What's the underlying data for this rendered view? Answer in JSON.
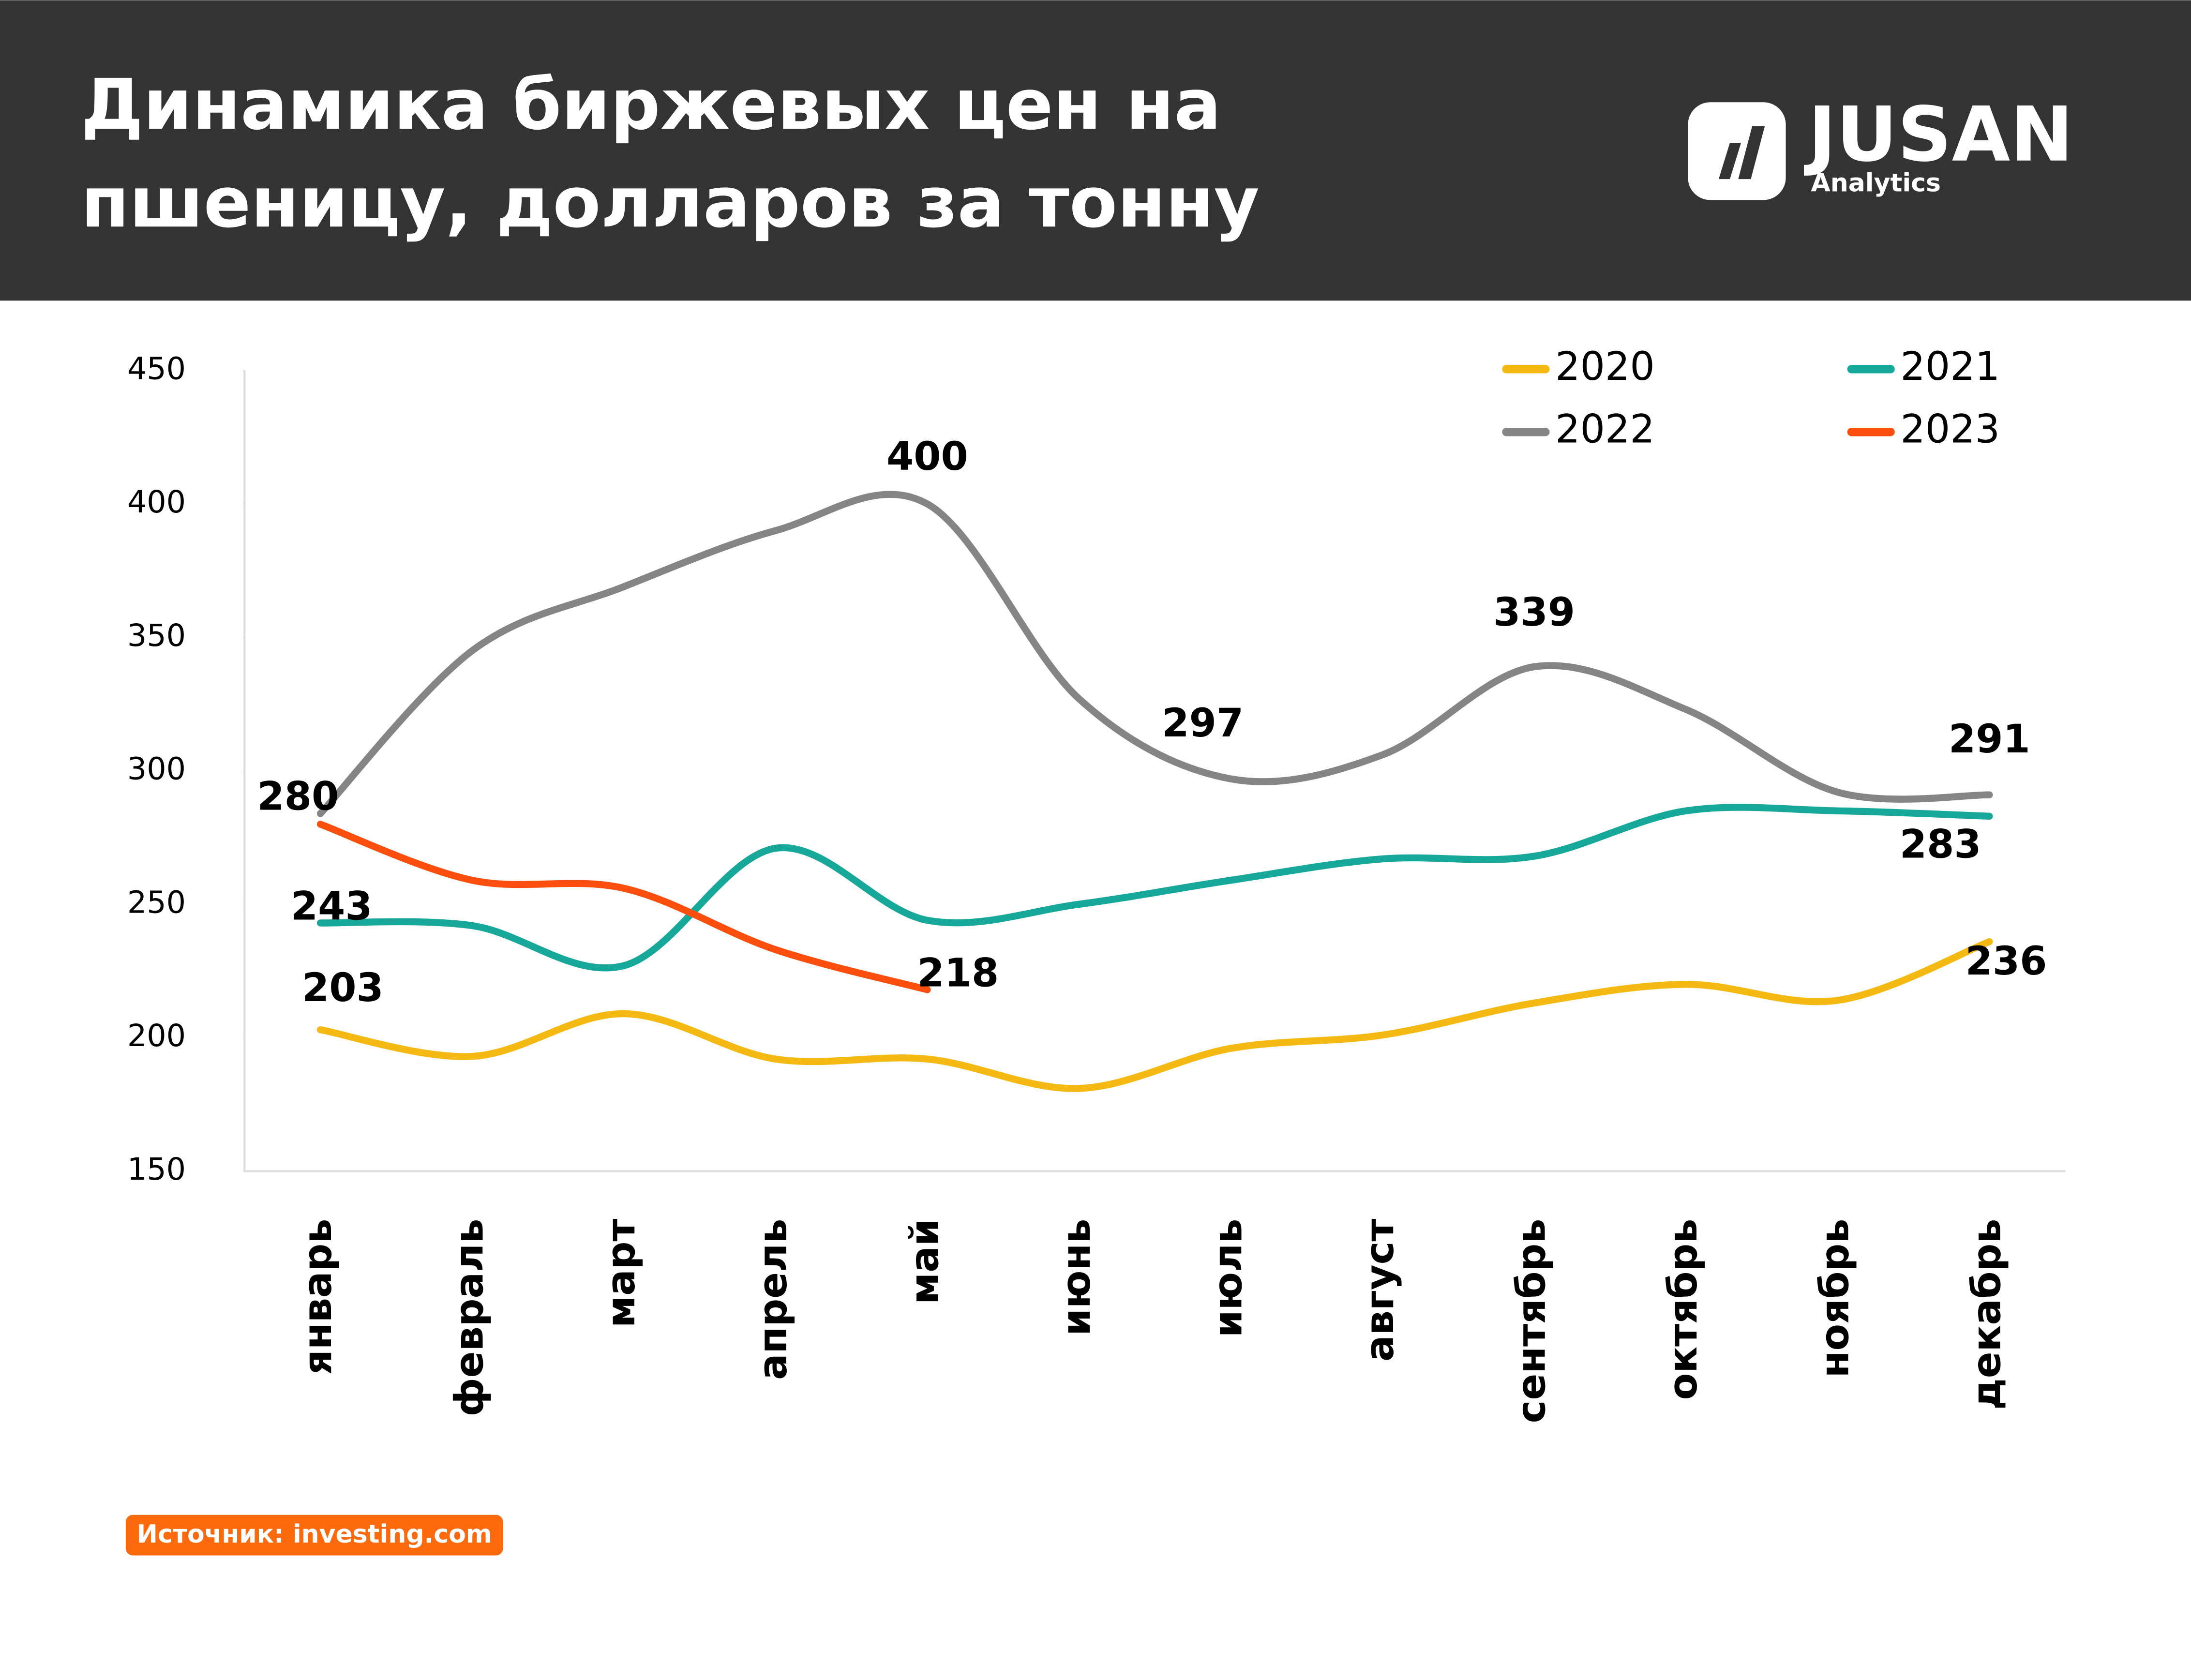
{
  "chart_data": {
    "type": "line",
    "title": "Динамика биржевых цен на пшеницу, долларов за тонну",
    "categories": [
      "январь",
      "февраль",
      "март",
      "апрель",
      "май",
      "июнь",
      "июль",
      "август",
      "сентябрь",
      "октябрь",
      "ноябрь",
      "декабрь"
    ],
    "series": [
      {
        "name": "2020",
        "color": "#f5b914",
        "values": [
          203,
          193,
          209,
          192,
          192,
          181,
          196,
          201,
          213,
          220,
          214,
          236
        ],
        "labeled": [
          0,
          11
        ]
      },
      {
        "name": "2021",
        "color": "#17a89a",
        "values": [
          243,
          242,
          227,
          271,
          244,
          250,
          259,
          267,
          268,
          285,
          285,
          283
        ],
        "labeled": [
          0,
          11
        ]
      },
      {
        "name": "2022",
        "color": "#858585",
        "values": [
          284,
          345,
          369,
          390,
          400,
          327,
          297,
          306,
          339,
          323,
          292,
          291
        ],
        "labeled": [
          4,
          6,
          8,
          11
        ]
      },
      {
        "name": "2023",
        "color": "#fc4f0d",
        "values": [
          280,
          259,
          256,
          233,
          218,
          null,
          null,
          null,
          null,
          null,
          null,
          null
        ],
        "labeled": [
          0,
          4
        ]
      }
    ],
    "ylim": [
      150,
      450
    ],
    "yticks": [
      150,
      200,
      250,
      300,
      350,
      400,
      450
    ],
    "grid": false,
    "smooth": true
  },
  "logo": {
    "name": "JUSAN",
    "sub": "Analytics"
  },
  "source": "Источник: investing.com"
}
